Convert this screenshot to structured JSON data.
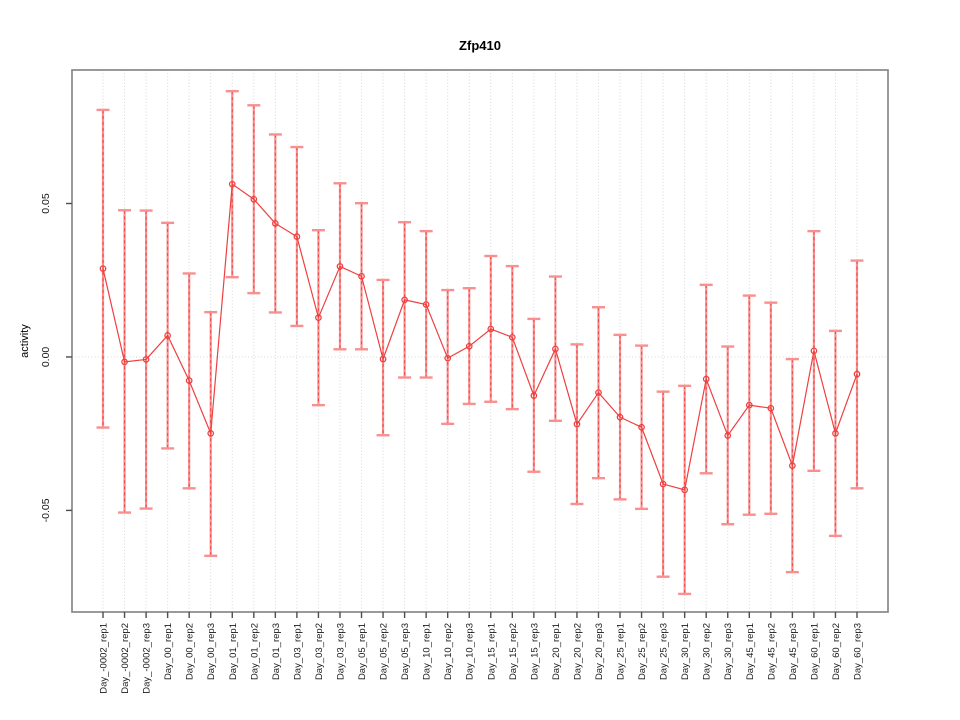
{
  "chart_data": {
    "type": "line",
    "title": "Zfp410",
    "xlabel": "",
    "ylabel": "activity",
    "ylim": [
      -0.0831,
      0.0935
    ],
    "yticks": [
      -0.05,
      0.0,
      0.05
    ],
    "ytick_labels": [
      "-0.05",
      "0.00",
      "0.05"
    ],
    "grid": "dotted vertical gridline at each category; dotted horizontal line at y=0",
    "legend": "none",
    "marker": "open-circle",
    "error_bars": true,
    "categories": [
      "Day_-0002_rep1",
      "Day_-0002_rep2",
      "Day_-0002_rep3",
      "Day_00_rep1",
      "Day_00_rep2",
      "Day_00_rep3",
      "Day_01_rep1",
      "Day_01_rep2",
      "Day_01_rep3",
      "Day_03_rep1",
      "Day_03_rep2",
      "Day_03_rep3",
      "Day_05_rep1",
      "Day_05_rep2",
      "Day_05_rep3",
      "Day_10_rep1",
      "Day_10_rep2",
      "Day_10_rep3",
      "Day_15_rep1",
      "Day_15_rep2",
      "Day_15_rep3",
      "Day_20_rep1",
      "Day_20_rep2",
      "Day_20_rep3",
      "Day_25_rep1",
      "Day_25_rep2",
      "Day_25_rep3",
      "Day_30_rep1",
      "Day_30_rep2",
      "Day_30_rep3",
      "Day_45_rep1",
      "Day_45_rep2",
      "Day_45_rep3",
      "Day_60_rep1",
      "Day_60_rep2",
      "Day_60_rep3"
    ],
    "series": [
      {
        "name": "activity",
        "values": [
          0.0288,
          -0.0016,
          -0.0008,
          0.007,
          -0.0077,
          -0.0249,
          0.0563,
          0.0514,
          0.0435,
          0.0392,
          0.0128,
          0.0295,
          0.0263,
          -0.0007,
          0.0186,
          0.0171,
          -0.0004,
          0.0035,
          0.0091,
          0.0064,
          -0.0126,
          0.0026,
          -0.0219,
          -0.0116,
          -0.0196,
          -0.0229,
          -0.0414,
          -0.0433,
          -0.0072,
          -0.0256,
          -0.0157,
          -0.0167,
          -0.0354,
          0.002,
          -0.0249,
          -0.0056
        ],
        "upper": [
          0.0805,
          0.0478,
          0.0477,
          0.0437,
          0.0272,
          0.0146,
          0.0866,
          0.082,
          0.0725,
          0.0684,
          0.0413,
          0.0566,
          0.0501,
          0.0251,
          0.0439,
          0.041,
          0.0218,
          0.0224,
          0.0329,
          0.0296,
          0.0124,
          0.0262,
          0.0041,
          0.0162,
          0.0072,
          0.0037,
          -0.0113,
          -0.0094,
          0.0235,
          0.0034,
          0.02,
          0.0177,
          -0.0007,
          0.041,
          0.0085,
          0.0314
        ],
        "lower": [
          -0.023,
          -0.0507,
          -0.0494,
          -0.0298,
          -0.0428,
          -0.0648,
          0.026,
          0.0208,
          0.0145,
          0.0101,
          -0.0157,
          0.0025,
          0.0025,
          -0.0255,
          -0.0067,
          -0.0067,
          -0.0218,
          -0.0153,
          -0.0146,
          -0.017,
          -0.0374,
          -0.0208,
          -0.0479,
          -0.0395,
          -0.0464,
          -0.0495,
          -0.0716,
          -0.0772,
          -0.0379,
          -0.0545,
          -0.0514,
          -0.0511,
          -0.0701,
          -0.0371,
          -0.0583,
          -0.0428
        ]
      }
    ],
    "colors": {
      "series": "#ee4040",
      "errorbar": "#f99090",
      "grid": "#d8d8d8",
      "box": "#808080",
      "tick": "#4d4d4d",
      "text": "#1a1a1a"
    }
  }
}
